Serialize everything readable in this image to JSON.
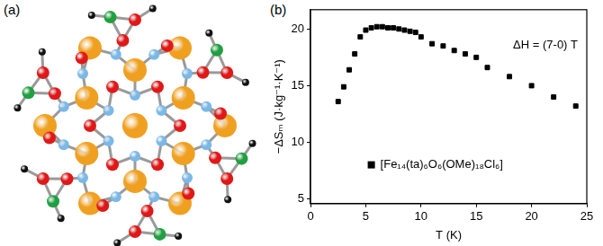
{
  "figure": {
    "panel_labels": [
      "(a)",
      "(b)"
    ]
  },
  "chart_data": {
    "type": "scatter",
    "x_label": "T (K)",
    "y_label": "−ΔSₘ (J·kg⁻¹·K⁻¹)",
    "annotations": [
      "ΔH = (7-0) T"
    ],
    "x": [
      2.5,
      3,
      3.5,
      4,
      4.5,
      5,
      5.5,
      6,
      6.5,
      7,
      7.5,
      8,
      8.5,
      9,
      9.5,
      10,
      11,
      12,
      13,
      14,
      15,
      16,
      18,
      20,
      22,
      24
    ],
    "series": [
      {
        "name": "[Fe₁₄(ta)₆O₆(OMe)₁₈Cl₆]",
        "color": "#000000",
        "marker": "square",
        "values": [
          13.6,
          14.9,
          16.4,
          17.8,
          19.3,
          19.9,
          20.1,
          20.2,
          20.2,
          20.1,
          20.1,
          20.0,
          19.9,
          19.8,
          19.7,
          19.3,
          18.7,
          18.5,
          18.1,
          17.8,
          17.5,
          16.6,
          15.8,
          15.0,
          14.0,
          13.2
        ]
      }
    ],
    "xlim": [
      0,
      25
    ],
    "xticks": [
      0,
      5,
      10,
      15,
      20,
      25
    ],
    "ylim": [
      4.6,
      21.7
    ],
    "yticks": [
      5,
      10,
      15,
      20
    ],
    "grid": false,
    "legend": "lower left"
  }
}
